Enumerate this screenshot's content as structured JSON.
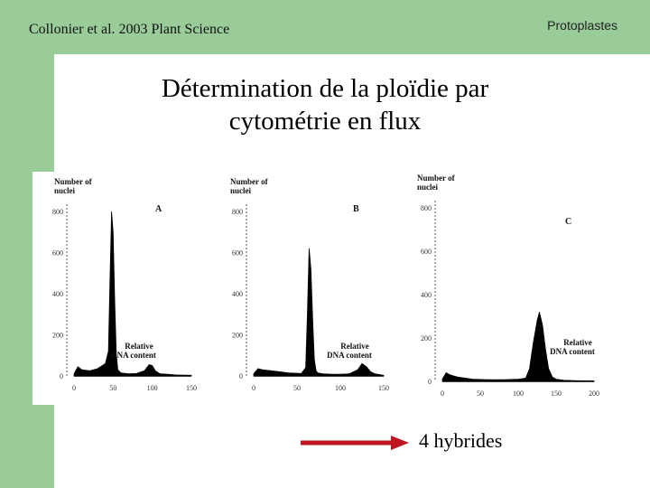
{
  "header": {
    "citation": "Collonier et al. 2003 Plant Science",
    "topic": "Protoplastes"
  },
  "slide": {
    "title_line1": "Détermination de la ploïdie par",
    "title_line2": "cytométrie en flux",
    "caption": "4 hybrides",
    "arrow_color": "#c0141e"
  },
  "theme": {
    "background_accent": "#99cc99"
  },
  "chart_data": [
    {
      "type": "area",
      "panel_label": "A",
      "ylabel": "Number of nuclei",
      "xlabel": "Relative DNA content",
      "y_ticks": [
        "0",
        "200",
        "400",
        "600",
        "800"
      ],
      "x_ticks": [
        "0",
        "50",
        "100",
        "150"
      ],
      "xlim": [
        0,
        150
      ],
      "ylim": [
        0,
        800
      ],
      "x": [
        0,
        5,
        10,
        20,
        30,
        40,
        44,
        46,
        48,
        50,
        52,
        54,
        56,
        60,
        70,
        80,
        90,
        96,
        100,
        104,
        110,
        120,
        130,
        150
      ],
      "y": [
        10,
        45,
        30,
        25,
        35,
        60,
        120,
        480,
        800,
        700,
        360,
        110,
        30,
        15,
        10,
        12,
        25,
        55,
        50,
        25,
        10,
        8,
        5,
        3
      ]
    },
    {
      "type": "area",
      "panel_label": "B",
      "ylabel": "Number of nuclei",
      "xlabel": "Relative DNA content",
      "y_ticks": [
        "0",
        "200",
        "400",
        "600",
        "800"
      ],
      "x_ticks": [
        "0",
        "50",
        "100",
        "150"
      ],
      "xlim": [
        0,
        150
      ],
      "ylim": [
        0,
        800
      ],
      "x": [
        0,
        5,
        10,
        20,
        30,
        40,
        55,
        60,
        62,
        64,
        66,
        68,
        70,
        72,
        74,
        80,
        90,
        100,
        110,
        120,
        125,
        130,
        135,
        140,
        150
      ],
      "y": [
        10,
        35,
        30,
        25,
        20,
        15,
        12,
        40,
        300,
        620,
        520,
        280,
        80,
        25,
        15,
        10,
        8,
        8,
        10,
        30,
        60,
        45,
        20,
        10,
        3
      ]
    },
    {
      "type": "area",
      "panel_label": "C",
      "ylabel": "Number of nuclei",
      "xlabel": "Relative DNA content",
      "y_ticks": [
        "0",
        "200",
        "400",
        "600",
        "800"
      ],
      "x_ticks": [
        "0",
        "50",
        "100",
        "150",
        "200"
      ],
      "xlim": [
        0,
        200
      ],
      "ylim": [
        0,
        800
      ],
      "x": [
        0,
        5,
        10,
        20,
        30,
        40,
        60,
        80,
        100,
        110,
        115,
        120,
        125,
        128,
        132,
        136,
        140,
        145,
        150,
        160,
        180,
        200
      ],
      "y": [
        10,
        40,
        30,
        20,
        15,
        10,
        8,
        8,
        10,
        15,
        60,
        180,
        280,
        320,
        260,
        150,
        60,
        20,
        10,
        5,
        3,
        2
      ]
    }
  ]
}
